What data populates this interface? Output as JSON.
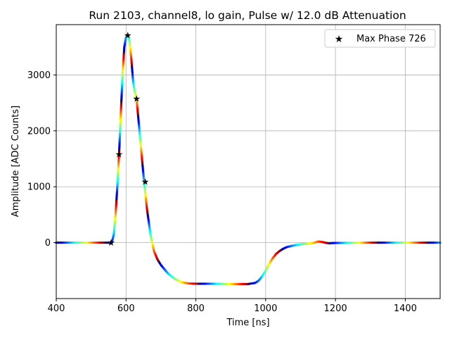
{
  "chart_data": {
    "type": "scatter",
    "title": "Run 2103, channel8, lo gain, Pulse w/ 12.0 dB Attenuation",
    "xlabel": "Time [ns]",
    "ylabel": "Amplitude [ADC Counts]",
    "xlim": [
      400,
      1500
    ],
    "ylim": [
      -1000,
      3900
    ],
    "xticks": [
      400,
      600,
      800,
      1000,
      1200,
      1400
    ],
    "yticks": [
      0,
      1000,
      2000,
      3000
    ],
    "grid": true,
    "legend_position": "top-right",
    "colormap": "jet",
    "waveform": {
      "t": [
        400,
        540,
        555,
        560,
        565,
        570,
        575,
        580,
        585,
        590,
        595,
        600,
        605,
        610,
        615,
        620,
        625,
        630,
        640,
        650,
        660,
        670,
        680,
        690,
        700,
        720,
        740,
        760,
        780,
        800,
        850,
        900,
        950,
        970,
        980,
        990,
        1000,
        1010,
        1020,
        1030,
        1040,
        1050,
        1060,
        1080,
        1100,
        1120,
        1140,
        1150,
        1160,
        1170,
        1180,
        1200,
        1300,
        1500
      ],
      "amplitude": [
        0,
        0,
        0,
        20,
        150,
        500,
        1000,
        1580,
        2300,
        3000,
        3500,
        3680,
        3710,
        3600,
        3300,
        2900,
        2700,
        2580,
        1900,
        1200,
        600,
        150,
        -150,
        -300,
        -400,
        -550,
        -650,
        -710,
        -730,
        -735,
        -735,
        -740,
        -740,
        -720,
        -680,
        -600,
        -500,
        -380,
        -280,
        -200,
        -150,
        -110,
        -80,
        -50,
        -30,
        -20,
        0,
        20,
        15,
        0,
        -10,
        -5,
        0,
        0
      ]
    },
    "series": [
      {
        "name": "Max Phase 726",
        "marker": "star",
        "color": "#000000",
        "points": [
          [
            557,
            0
          ],
          [
            580,
            1580
          ],
          [
            605,
            3710
          ],
          [
            630,
            2580
          ],
          [
            655,
            1090
          ]
        ]
      }
    ]
  }
}
